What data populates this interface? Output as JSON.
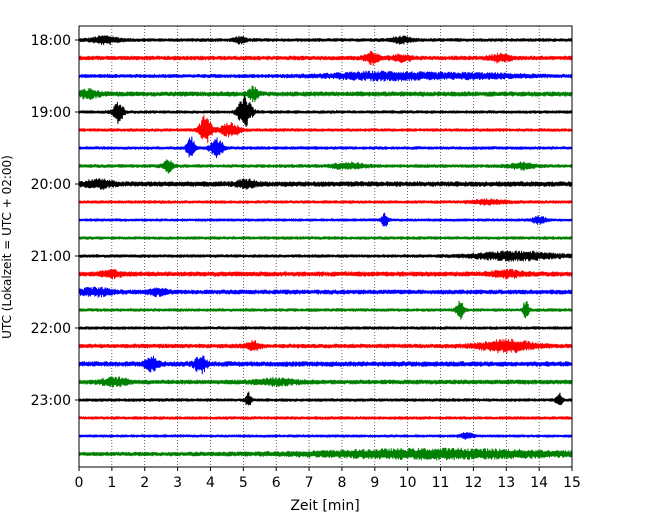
{
  "chart_data": {
    "type": "line",
    "subtype": "helicorder-seismogram",
    "title": "",
    "xlabel": "Zeit  [min]",
    "ylabel": "UTC (Lokalzeit = UTC + 02:00)",
    "xlim": [
      0,
      15
    ],
    "x_ticks": [
      0,
      1,
      2,
      3,
      4,
      5,
      6,
      7,
      8,
      9,
      10,
      11,
      12,
      13,
      14,
      15
    ],
    "x_tick_labels": [
      "0",
      "1",
      "2",
      "3",
      "4",
      "5",
      "6",
      "7",
      "8",
      "9",
      "10",
      "11",
      "12",
      "13",
      "14",
      "15"
    ],
    "y_tick_labels": [
      "18:00",
      "19:00",
      "20:00",
      "21:00",
      "22:00",
      "23:00"
    ],
    "y_tick_rows": [
      0,
      4,
      8,
      12,
      16,
      20
    ],
    "grid": {
      "vertical_dotted": true,
      "horizontal": false
    },
    "trace_colors": [
      "#000000",
      "#ff0000",
      "#0000ff",
      "#008000"
    ],
    "traces": [
      {
        "start": "18:00",
        "amp": 0.22,
        "events": [
          {
            "t": 0.8,
            "a": 0.5,
            "w": 0.4
          },
          {
            "t": 4.9,
            "a": 0.4,
            "w": 0.2
          },
          {
            "t": 9.8,
            "a": 0.4,
            "w": 0.3
          }
        ]
      },
      {
        "start": "18:15",
        "amp": 0.28,
        "events": [
          {
            "t": 8.9,
            "a": 0.8,
            "w": 0.2
          },
          {
            "t": 9.8,
            "a": 0.4,
            "w": 0.3
          },
          {
            "t": 12.8,
            "a": 0.5,
            "w": 0.3
          }
        ]
      },
      {
        "start": "18:30",
        "amp": 0.24,
        "events": [
          {
            "t": 9.2,
            "a": 0.5,
            "w": 1.6
          },
          {
            "t": 12.0,
            "a": 0.3,
            "w": 1.5
          }
        ]
      },
      {
        "start": "18:45",
        "amp": 0.32,
        "events": [
          {
            "t": 0.3,
            "a": 0.5,
            "w": 0.3
          },
          {
            "t": 5.3,
            "a": 0.9,
            "w": 0.15
          }
        ]
      },
      {
        "start": "19:00",
        "amp": 0.2,
        "events": [
          {
            "t": 1.2,
            "a": 1.5,
            "w": 0.15
          },
          {
            "t": 5.05,
            "a": 2.2,
            "w": 0.2
          }
        ]
      },
      {
        "start": "19:15",
        "amp": 0.2,
        "events": [
          {
            "t": 3.85,
            "a": 2.0,
            "w": 0.18
          },
          {
            "t": 4.6,
            "a": 0.9,
            "w": 0.3
          }
        ]
      },
      {
        "start": "19:30",
        "amp": 0.2,
        "events": [
          {
            "t": 3.4,
            "a": 1.5,
            "w": 0.12
          },
          {
            "t": 4.2,
            "a": 1.3,
            "w": 0.2
          }
        ]
      },
      {
        "start": "19:45",
        "amp": 0.22,
        "events": [
          {
            "t": 2.7,
            "a": 0.9,
            "w": 0.15
          },
          {
            "t": 8.2,
            "a": 0.4,
            "w": 0.5
          },
          {
            "t": 13.5,
            "a": 0.4,
            "w": 0.4
          }
        ]
      },
      {
        "start": "20:00",
        "amp": 0.34,
        "events": [
          {
            "t": 0.6,
            "a": 0.5,
            "w": 0.4
          },
          {
            "t": 5.1,
            "a": 0.5,
            "w": 0.3
          }
        ]
      },
      {
        "start": "20:15",
        "amp": 0.2,
        "events": [
          {
            "t": 12.5,
            "a": 0.3,
            "w": 0.5
          }
        ]
      },
      {
        "start": "20:30",
        "amp": 0.18,
        "events": [
          {
            "t": 9.3,
            "a": 1.0,
            "w": 0.1
          },
          {
            "t": 14.0,
            "a": 0.5,
            "w": 0.2
          }
        ]
      },
      {
        "start": "20:45",
        "amp": 0.2,
        "events": []
      },
      {
        "start": "21:00",
        "amp": 0.2,
        "events": [
          {
            "t": 13.3,
            "a": 0.6,
            "w": 1.3
          }
        ]
      },
      {
        "start": "21:15",
        "amp": 0.32,
        "events": [
          {
            "t": 1.0,
            "a": 0.4,
            "w": 0.3
          },
          {
            "t": 13.0,
            "a": 0.4,
            "w": 0.5
          }
        ]
      },
      {
        "start": "21:30",
        "amp": 0.3,
        "events": [
          {
            "t": 0.5,
            "a": 0.5,
            "w": 0.5
          },
          {
            "t": 2.4,
            "a": 0.4,
            "w": 0.3
          }
        ]
      },
      {
        "start": "21:45",
        "amp": 0.2,
        "events": [
          {
            "t": 11.6,
            "a": 1.2,
            "w": 0.12
          },
          {
            "t": 13.6,
            "a": 1.6,
            "w": 0.08
          }
        ]
      },
      {
        "start": "22:00",
        "amp": 0.2,
        "events": []
      },
      {
        "start": "22:15",
        "amp": 0.28,
        "events": [
          {
            "t": 5.3,
            "a": 0.6,
            "w": 0.2
          },
          {
            "t": 13.0,
            "a": 0.8,
            "w": 0.8
          }
        ]
      },
      {
        "start": "22:30",
        "amp": 0.34,
        "events": [
          {
            "t": 2.2,
            "a": 0.9,
            "w": 0.2
          },
          {
            "t": 3.7,
            "a": 1.2,
            "w": 0.18
          }
        ]
      },
      {
        "start": "22:45",
        "amp": 0.3,
        "events": [
          {
            "t": 1.1,
            "a": 0.5,
            "w": 0.4
          },
          {
            "t": 6.0,
            "a": 0.4,
            "w": 0.6
          }
        ]
      },
      {
        "start": "23:00",
        "amp": 0.2,
        "events": [
          {
            "t": 5.15,
            "a": 1.1,
            "w": 0.08
          },
          {
            "t": 14.6,
            "a": 0.9,
            "w": 0.1
          }
        ]
      },
      {
        "start": "23:15",
        "amp": 0.2,
        "events": []
      },
      {
        "start": "23:30",
        "amp": 0.18,
        "events": [
          {
            "t": 11.8,
            "a": 0.4,
            "w": 0.2
          }
        ]
      },
      {
        "start": "23:45",
        "amp": 0.26,
        "events": [
          {
            "t": 11.0,
            "a": 0.6,
            "w": 4.0
          }
        ]
      }
    ]
  }
}
